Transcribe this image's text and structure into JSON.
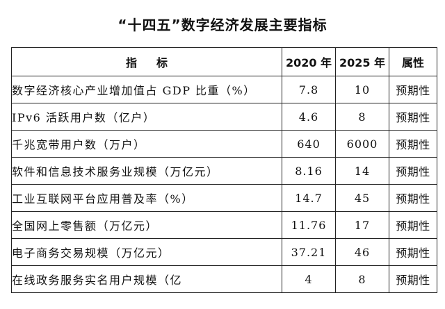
{
  "title": "“十四五”数字经济发展主要指标",
  "table": {
    "headers": {
      "indicator_a": "指",
      "indicator_b": "标",
      "year_2020": "2020 年",
      "year_2025": "2025 年",
      "attribute": "属性"
    },
    "rows": [
      {
        "name": "数字经济核心产业增加值占 GDP 比重（%）",
        "v2020": "7.8",
        "v2025": "10",
        "attr": "预期性"
      },
      {
        "name": "IPv6 活跃用户数（亿户）",
        "v2020": "4.6",
        "v2025": "8",
        "attr": "预期性"
      },
      {
        "name": "千兆宽带用户数（万户）",
        "v2020": "640",
        "v2025": "6000",
        "attr": "预期性"
      },
      {
        "name": "软件和信息技术服务业规模（万亿元）",
        "v2020": "8.16",
        "v2025": "14",
        "attr": "预期性"
      },
      {
        "name": "工业互联网平台应用普及率（%）",
        "v2020": "14.7",
        "v2025": "45",
        "attr": "预期性"
      },
      {
        "name": "全国网上零售额（万亿元）",
        "v2020": "11.76",
        "v2025": "17",
        "attr": "预期性"
      },
      {
        "name": "电子商务交易规模（万亿元）",
        "v2020": "37.21",
        "v2025": "46",
        "attr": "预期性"
      },
      {
        "name": "在线政务服务实名用户规模（亿",
        "v2020": "4",
        "v2025": "8",
        "attr": "预期性"
      }
    ]
  }
}
